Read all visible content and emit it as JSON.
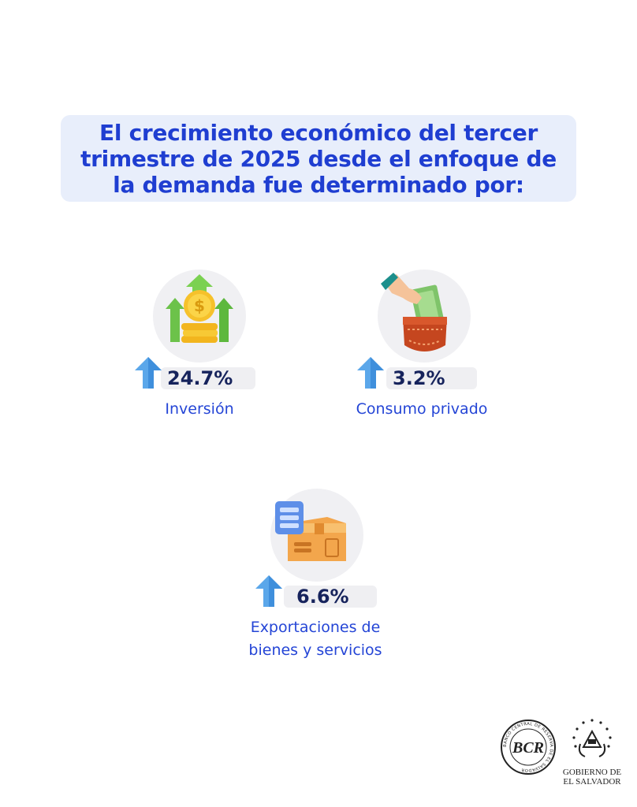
{
  "header": {
    "title_lines": [
      "El crecimiento económico del tercer",
      "trimestre de 2025 desde el enfoque de",
      "la demanda fue determinado por:"
    ]
  },
  "items": [
    {
      "value": "24.7%",
      "label": "Inversión",
      "icon": "money-growth-icon"
    },
    {
      "value": "3.2%",
      "label": "Consumo privado",
      "icon": "pocket-money-icon"
    },
    {
      "value": "6.6%",
      "label_lines": [
        "Exportaciones de",
        "bienes y servicios"
      ],
      "icon": "export-box-icon"
    }
  ],
  "colors": {
    "title": "#1f3ed1",
    "title_bg": "#e8eefb",
    "value": "#16235c",
    "label": "#2445d6",
    "arrow": "#5ba7ea"
  },
  "footer": {
    "bcr_logo_text": "BANCO CENTRAL DE RESERVA DE EL SALVADOR",
    "bcr_monogram": "BCR",
    "gov_lines": [
      "GOBIERNO DE",
      "EL SALVADOR"
    ]
  }
}
